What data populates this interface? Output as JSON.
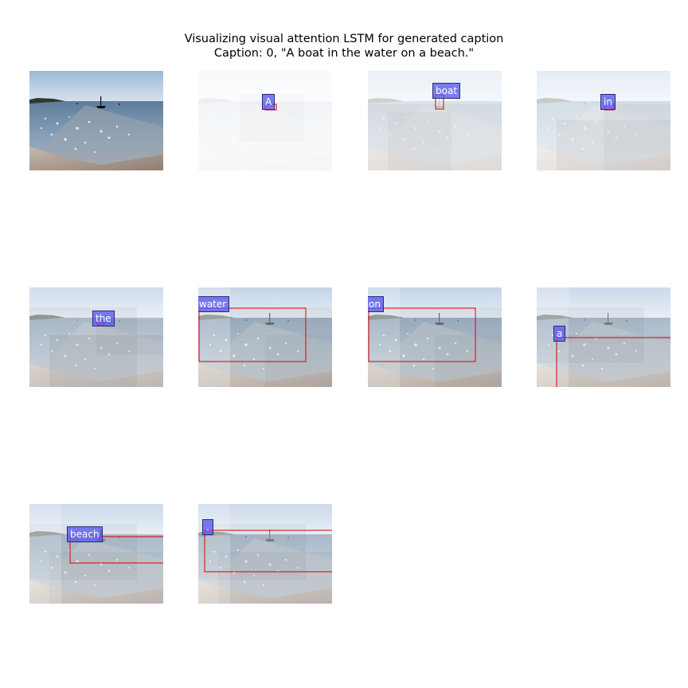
{
  "figure": {
    "title_line1": "Visualizing visual attention LSTM for generated caption",
    "title_line2": "Caption: 0, \"A boat in the water on a beach.\""
  },
  "panels": [
    {
      "kind": "original"
    },
    {
      "kind": "attention",
      "word": "A",
      "attention_level": 0.05
    },
    {
      "kind": "attention",
      "word": "boat",
      "attention_level": 0.25
    },
    {
      "kind": "attention",
      "word": "in",
      "attention_level": 0.3
    },
    {
      "kind": "attention",
      "word": "the",
      "attention_level": 0.6
    },
    {
      "kind": "attention",
      "word": "water",
      "attention_level": 0.75
    },
    {
      "kind": "attention",
      "word": "on",
      "attention_level": 0.75
    },
    {
      "kind": "attention",
      "word": "a",
      "attention_level": 0.65
    },
    {
      "kind": "attention",
      "word": "beach",
      "attention_level": 0.65
    },
    {
      "kind": "attention",
      "word": ".",
      "attention_level": 0.65
    }
  ],
  "colors": {
    "token_box": "#5858ee",
    "attention_box": "#dd0000",
    "sky": "#b8cfe6",
    "sea": "#7d98b6",
    "sand": "#a89584"
  }
}
